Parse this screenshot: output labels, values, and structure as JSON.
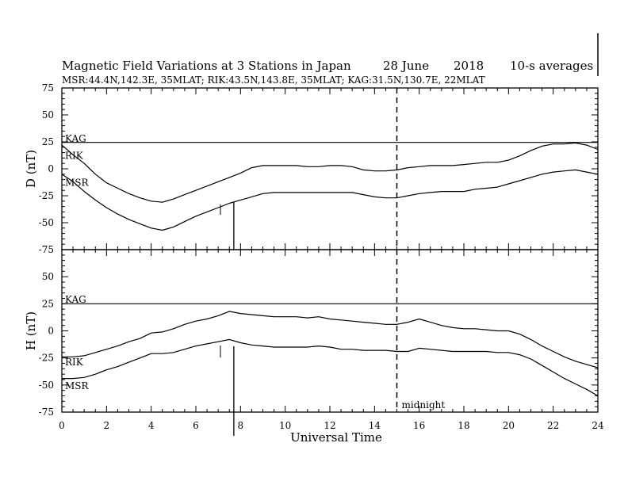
{
  "chart_data": {
    "type": "line",
    "title": "Magnetic Field Variations at 3 Stations in Japan",
    "date": "28 June",
    "year": "2018",
    "averaging": "10-s averages",
    "subtitle": "MSR:44.4N,142.3E, 35MLAT;  RIK:43.5N,143.8E, 35MLAT;  KAG:31.5N,130.7E, 22MLAT",
    "xlabel": "Universal Time",
    "xlim": [
      0,
      24
    ],
    "x_ticks": [
      0,
      2,
      4,
      6,
      8,
      10,
      12,
      14,
      16,
      18,
      20,
      22,
      24
    ],
    "midnight_line": {
      "x": 15,
      "label": "midnight"
    },
    "panels": [
      {
        "ylabel": "D (nT)",
        "ylim": [
          -75,
          75
        ],
        "y_ticks": [
          75,
          50,
          25,
          0,
          -25,
          -50,
          -75
        ],
        "series": [
          {
            "name": "KAG",
            "x": [
              0,
              24
            ],
            "values": [
              24.5,
              24.5
            ]
          },
          {
            "name": "RIK",
            "x": [
              0,
              0.5,
              1,
              1.5,
              2,
              2.5,
              3,
              3.5,
              4,
              4.5,
              5,
              5.5,
              6,
              6.5,
              7,
              7.5,
              8,
              8.5,
              9,
              9.5,
              10,
              10.5,
              11,
              11.5,
              12,
              12.5,
              13,
              13.5,
              14,
              14.5,
              15,
              15.5,
              16,
              16.5,
              17,
              17.5,
              18,
              18.5,
              19,
              19.5,
              20,
              20.5,
              21,
              21.5,
              22,
              22.5,
              23,
              23.5,
              24
            ],
            "values": [
              22,
              13,
              5,
              -5,
              -13,
              -18,
              -23,
              -27,
              -30,
              -31,
              -28,
              -24,
              -20,
              -16,
              -12,
              -8,
              -4,
              1,
              3,
              3,
              3,
              3,
              2,
              2,
              3,
              3,
              2,
              -1,
              -2,
              -2,
              -1,
              1,
              2,
              3,
              3,
              3,
              4,
              5,
              6,
              6,
              8,
              12,
              17,
              21,
              23,
              23,
              24,
              22,
              18
            ]
          },
          {
            "name": "MSR",
            "x": [
              0,
              0.5,
              1,
              1.5,
              2,
              2.5,
              3,
              3.5,
              4,
              4.5,
              5,
              5.5,
              6,
              6.5,
              7,
              7.5,
              8,
              8.5,
              9,
              9.5,
              10,
              10.5,
              11,
              11.5,
              12,
              12.5,
              13,
              13.5,
              14,
              14.5,
              15,
              15.5,
              16,
              16.5,
              17,
              17.5,
              18,
              18.5,
              19,
              19.5,
              20,
              20.5,
              21,
              21.5,
              22,
              22.5,
              23,
              23.5,
              24
            ],
            "values": [
              -5,
              -12,
              -21,
              -29,
              -36,
              -42,
              -47,
              -51,
              -55,
              -57,
              -54,
              -49,
              -44,
              -40,
              -36,
              -32,
              -29,
              -26,
              -23,
              -22,
              -22,
              -22,
              -22,
              -22,
              -22,
              -22,
              -22,
              -24,
              -26,
              -27,
              -27,
              -25,
              -23,
              -22,
              -21,
              -21,
              -21,
              -19,
              -18,
              -17,
              -14,
              -11,
              -8,
              -5,
              -3,
              -2,
              -1,
              -3,
              -5
            ]
          }
        ],
        "label_positions": {
          "KAG": 28,
          "RIK": 12,
          "MSR": -13
        }
      },
      {
        "ylabel": "H (nT)",
        "ylim": [
          -75,
          75
        ],
        "y_ticks": [
          75,
          50,
          25,
          0,
          -25,
          -50,
          -75
        ],
        "series": [
          {
            "name": "KAG",
            "x": [
              0,
              24
            ],
            "values": [
              25,
              25
            ]
          },
          {
            "name": "RIK",
            "x": [
              0,
              0.5,
              1,
              1.5,
              2,
              2.5,
              3,
              3.5,
              4,
              4.5,
              5,
              5.5,
              6,
              6.5,
              7,
              7.5,
              8,
              8.5,
              9,
              9.5,
              10,
              10.5,
              11,
              11.5,
              12,
              12.5,
              13,
              13.5,
              14,
              14.5,
              15,
              15.5,
              16,
              16.5,
              17,
              17.5,
              18,
              18.5,
              19,
              19.5,
              20,
              20.5,
              21,
              21.5,
              22,
              22.5,
              23,
              23.5,
              24
            ],
            "values": [
              -24,
              -24,
              -23,
              -20,
              -17,
              -14,
              -10,
              -7,
              -2,
              -1,
              2,
              6,
              9,
              11,
              14,
              18,
              16,
              15,
              14,
              13,
              13,
              13,
              12,
              13,
              11,
              10,
              9,
              8,
              7,
              6,
              6,
              8,
              11,
              8,
              5,
              3,
              2,
              2,
              1,
              0,
              0,
              -3,
              -8,
              -14,
              -19,
              -24,
              -28,
              -31,
              -34
            ]
          },
          {
            "name": "MSR",
            "x": [
              0,
              0.5,
              1,
              1.5,
              2,
              2.5,
              3,
              3.5,
              4,
              4.5,
              5,
              5.5,
              6,
              6.5,
              7,
              7.5,
              8,
              8.5,
              9,
              9.5,
              10,
              10.5,
              11,
              11.5,
              12,
              12.5,
              13,
              13.5,
              14,
              14.5,
              15,
              15.5,
              16,
              16.5,
              17,
              17.5,
              18,
              18.5,
              19,
              19.5,
              20,
              20.5,
              21,
              21.5,
              22,
              22.5,
              23,
              23.5,
              24
            ],
            "values": [
              -44,
              -44,
              -43,
              -40,
              -36,
              -33,
              -29,
              -25,
              -21,
              -21,
              -20,
              -17,
              -14,
              -12,
              -10,
              -8,
              -11,
              -13,
              -14,
              -15,
              -15,
              -15,
              -15,
              -14,
              -15,
              -17,
              -17,
              -18,
              -18,
              -18,
              -19,
              -19,
              -16,
              -17,
              -18,
              -19,
              -19,
              -19,
              -19,
              -20,
              -20,
              -22,
              -26,
              -32,
              -38,
              -44,
              -49,
              -54,
              -60
            ]
          }
        ],
        "label_positions": {
          "KAG": 29,
          "RIK": -29,
          "MSR": -51
        }
      }
    ],
    "spikes_x": 7.7
  }
}
